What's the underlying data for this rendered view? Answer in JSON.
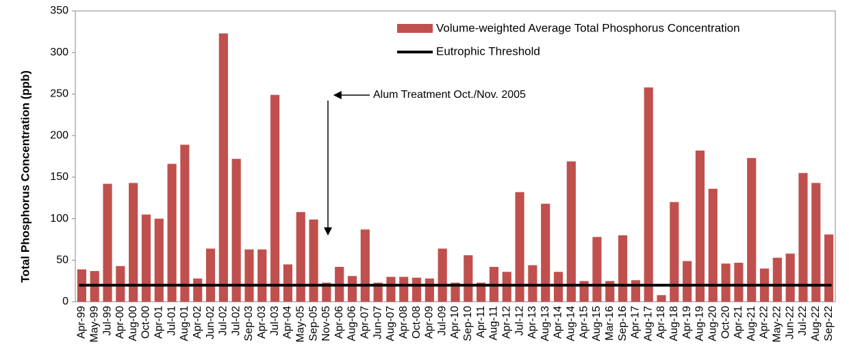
{
  "chart_data": {
    "type": "bar",
    "ylabel": "Total Phosphorus Concentration (ppb)",
    "annotation": "Alum Treatment Oct./Nov. 2005",
    "categories": [
      "Apr-99",
      "May-99",
      "Jul-99",
      "Apr-00",
      "Aug-00",
      "Oct-00",
      "Apr-01",
      "Jul-01",
      "Aug-01",
      "Apr-02",
      "Jun-02",
      "Jul-02",
      "Jul-02",
      "Sep-03",
      "Apr-03",
      "Jul-03",
      "Apr-04",
      "May-05",
      "Sep-05",
      "Nov-05",
      "Apr-06",
      "Aug-06",
      "Apr-07",
      "Jun-07",
      "Aug-07",
      "Apr-08",
      "Oct-08",
      "Apr-09",
      "Jul-09",
      "Apr-10",
      "Sep-10",
      "Apr-11",
      "Aug-11",
      "Apr-12",
      "Jul-12",
      "Apr-13",
      "Aug-13",
      "Apr-14",
      "Aug-14",
      "Apr-15",
      "Aug-15",
      "Mar-16",
      "Sep-16",
      "Apr-17",
      "Aug-17",
      "Apr-18",
      "Aug-18",
      "Apr-19",
      "Aug-19",
      "Aug-20",
      "Oct-20",
      "Apr-21",
      "Aug-21",
      "Apr-22",
      "May-22",
      "Jun-22",
      "Jul-22",
      "Aug-22",
      "Sep-22"
    ],
    "series": [
      {
        "name": "Volume-weighted Average Total Phosphorus Concentration",
        "color": "#c0504d",
        "values": [
          39,
          37,
          142,
          43,
          143,
          105,
          100,
          166,
          189,
          28,
          64,
          323,
          172,
          63,
          63,
          249,
          45,
          108,
          99,
          23,
          42,
          31,
          87,
          23,
          30,
          30,
          29,
          28,
          64,
          23,
          56,
          23,
          42,
          36,
          132,
          44,
          118,
          36,
          169,
          25,
          78,
          25,
          80,
          26,
          258,
          8,
          120,
          49,
          182,
          136,
          46,
          47,
          173,
          40,
          53,
          58,
          155,
          143,
          81
        ]
      }
    ],
    "threshold": {
      "name": "Eutrophic Threshold",
      "value": 20,
      "color": "#000000"
    },
    "ylim": [
      0,
      350
    ],
    "yticks": [
      0,
      50,
      100,
      150,
      200,
      250,
      300,
      350
    ],
    "grid": false
  }
}
